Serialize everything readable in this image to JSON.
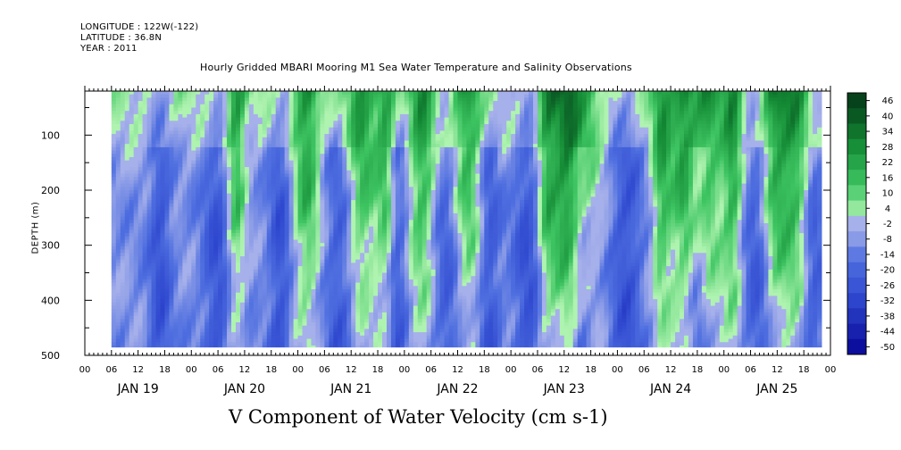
{
  "header": {
    "longitude": "LONGITUDE : 122W(-122)",
    "latitude": "LATITUDE : 36.8N",
    "year": "YEAR : 2011"
  },
  "chart_data": {
    "type": "heatmap",
    "title": "Hourly Gridded MBARI Mooring M1 Sea Water Temperature and Salinity Observations",
    "xlabel": "V Component of Water Velocity (cm s-1)",
    "ylabel": "DEPTH (m)",
    "x_range_hours": [
      0,
      168
    ],
    "data_extent_hours": [
      6,
      166
    ],
    "hour_ticks": [
      0,
      6,
      12,
      18,
      0,
      6,
      12,
      18,
      0,
      6,
      12,
      18,
      0,
      6,
      12,
      18,
      0,
      6,
      12,
      18,
      0,
      6,
      12,
      18,
      0,
      6,
      12,
      18,
      0
    ],
    "hour_tick_labels": [
      "00",
      "06",
      "12",
      "18",
      "00",
      "06",
      "12",
      "18",
      "00",
      "06",
      "12",
      "18",
      "00",
      "06",
      "12",
      "18",
      "00",
      "06",
      "12",
      "18",
      "00",
      "06",
      "12",
      "18",
      "00",
      "06",
      "12",
      "18",
      "00"
    ],
    "days": [
      "JAN 19",
      "JAN 20",
      "JAN 21",
      "JAN 22",
      "JAN 23",
      "JAN 24",
      "JAN 25"
    ],
    "y_ticks": [
      100,
      200,
      300,
      400,
      500
    ],
    "y_tick_labels": [
      "100",
      "200",
      "300",
      "400",
      "500"
    ],
    "y_range": [
      500,
      20
    ],
    "data_depth_range": [
      20,
      485
    ],
    "colorbar": {
      "levels": [
        -50,
        -44,
        -38,
        -32,
        -26,
        -20,
        -14,
        -8,
        -2,
        4,
        10,
        16,
        22,
        28,
        34,
        40,
        46
      ],
      "labels": [
        "46",
        "40",
        "34",
        "28",
        "22",
        "16",
        "10",
        "4",
        "-2",
        "-8",
        "-14",
        "-20",
        "-26",
        "-32",
        "-38",
        "-44",
        "-50"
      ]
    },
    "approx_strong_positive_columns_hours": [
      34,
      50,
      62,
      68,
      76,
      86,
      104,
      108,
      112,
      130,
      135,
      140,
      146,
      155,
      160
    ],
    "approx_strong_negative_columns_hours": [
      17,
      30,
      44,
      58,
      70,
      82,
      91,
      100,
      112,
      122,
      138,
      152,
      164
    ],
    "colors": {
      "strong_negative": "#0a0c9a",
      "negative": "#4f6fe0",
      "weak_negative": "#a6b0ea",
      "weak_positive": "#aff3b0",
      "positive": "#3ec562",
      "strong_positive": "#06421b",
      "missing": "#ffffff"
    }
  }
}
